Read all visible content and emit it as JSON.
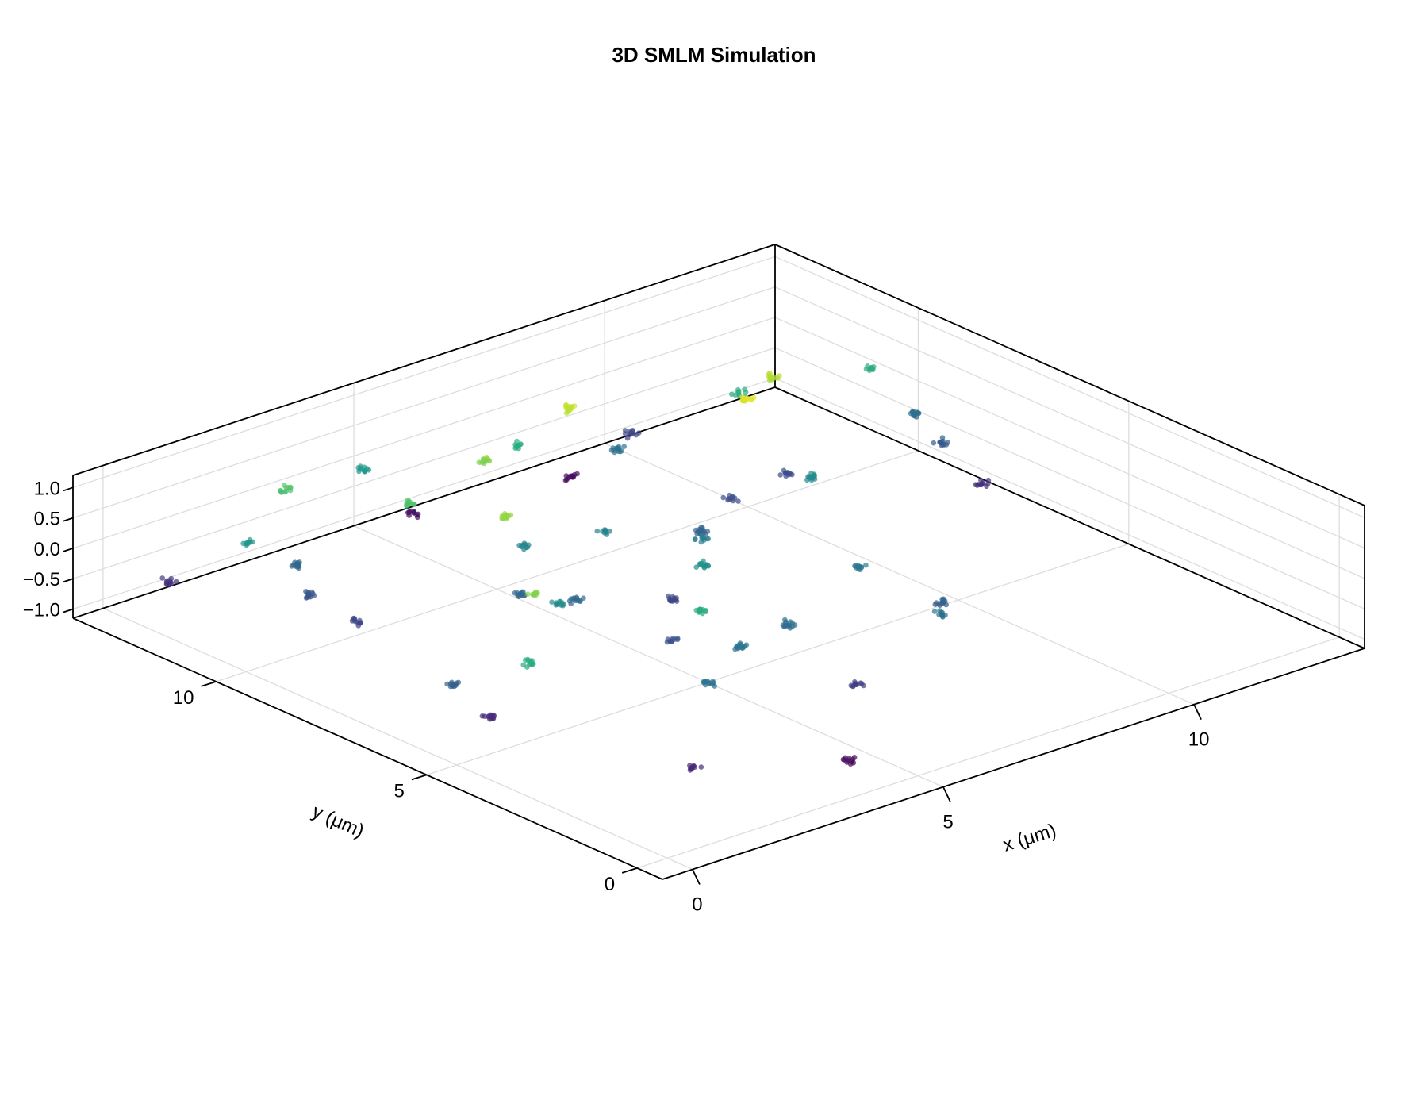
{
  "chart_data": {
    "type": "scatter3d",
    "title": "3D SMLM Simulation",
    "xlabel": "x (μm)",
    "ylabel": "y (μm)",
    "zlabel": "",
    "xlim": [
      -0.6,
      13.4
    ],
    "ylim": [
      -0.6,
      13.4
    ],
    "zlim": [
      -1.15,
      1.2
    ],
    "x_ticks": [
      0,
      5,
      10
    ],
    "y_ticks": [
      0,
      5,
      10
    ],
    "z_ticks": [
      -1.0,
      -0.5,
      0.0,
      0.5,
      1.0
    ],
    "x_tick_labels": [
      "0",
      "5",
      "10"
    ],
    "y_tick_labels": [
      "0",
      "5",
      "10"
    ],
    "z_tick_labels": [
      "−1.0",
      "−0.5",
      "0.0",
      "0.5",
      "1.0"
    ],
    "grid": true,
    "legend": "none",
    "colormap": "viridis",
    "color_by": "z",
    "colors": {
      "min": "#440154",
      "mid": "#21918c",
      "max": "#fde725",
      "grid": "#dddddd",
      "axis": "#000000"
    },
    "clusters": [
      [
        2.0,
        1.8,
        -0.75
      ],
      [
        4.3,
        0.8,
        -0.95
      ],
      [
        5.8,
        2.4,
        -0.6
      ],
      [
        3.5,
        3.2,
        -0.2
      ],
      [
        6.0,
        4.3,
        -0.25
      ],
      [
        4.6,
        5.4,
        -0.45
      ],
      [
        8.0,
        3.0,
        -0.2
      ],
      [
        8.5,
        3.6,
        -0.35
      ],
      [
        5.8,
        6.8,
        -0.55
      ],
      [
        7.6,
        8.2,
        -0.35
      ],
      [
        9.0,
        9.2,
        -0.5
      ],
      [
        10.3,
        9.4,
        -0.5
      ],
      [
        12.6,
        7.5,
        -0.7
      ],
      [
        12.7,
        8.6,
        -0.4
      ],
      [
        12.9,
        9.5,
        -0.25
      ],
      [
        12.7,
        10.3,
        0.3
      ],
      [
        8.2,
        5.2,
        -0.2
      ],
      [
        1.0,
        5.4,
        -0.75
      ],
      [
        0.8,
        6.0,
        -0.35
      ],
      [
        1.2,
        4.7,
        0.3
      ],
      [
        2.4,
        6.0,
        0.7
      ],
      [
        3.5,
        6.8,
        0.0
      ],
      [
        4.3,
        7.3,
        -0.3
      ],
      [
        3.8,
        8.0,
        -0.3
      ],
      [
        4.0,
        8.6,
        0.75
      ],
      [
        4.7,
        9.0,
        -0.05
      ],
      [
        3.6,
        10.4,
        0.5
      ],
      [
        1.6,
        9.3,
        -0.55
      ],
      [
        1.6,
        10.4,
        -0.45
      ],
      [
        2.0,
        11.2,
        -0.3
      ],
      [
        1.4,
        11.6,
        0.1
      ],
      [
        2.6,
        12.1,
        0.5
      ],
      [
        0.7,
        12.7,
        -0.7
      ],
      [
        4.5,
        4.6,
        0.3
      ],
      [
        6.1,
        6.4,
        0.05
      ],
      [
        6.0,
        8.6,
        -0.05
      ],
      [
        7.0,
        7.5,
        -0.1
      ],
      [
        5.3,
        10.6,
        0.7
      ],
      [
        9.7,
        8.1,
        0.0
      ],
      [
        7.3,
        11.0,
        0.9
      ],
      [
        6.7,
        11.5,
        0.3
      ],
      [
        4.6,
        12.7,
        0.1
      ],
      [
        5.6,
        12.7,
        -0.9
      ],
      [
        9.4,
        9.3,
        1.0
      ],
      [
        8.5,
        11.3,
        -0.2
      ],
      [
        10.6,
        10.9,
        0.3
      ],
      [
        8.4,
        12.3,
        -0.95
      ],
      [
        9.6,
        12.3,
        -0.55
      ],
      [
        4.8,
        4.0,
        -0.2
      ],
      [
        10.5,
        10.0,
        0.85
      ]
    ]
  }
}
